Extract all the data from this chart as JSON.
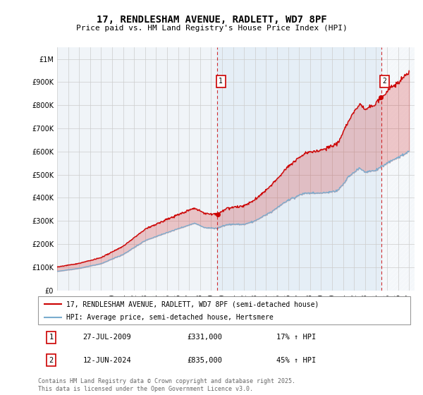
{
  "title": "17, RENDLESHAM AVENUE, RADLETT, WD7 8PF",
  "subtitle": "Price paid vs. HM Land Registry's House Price Index (HPI)",
  "legend_line1": "17, RENDLESHAM AVENUE, RADLETT, WD7 8PF (semi-detached house)",
  "legend_line2": "HPI: Average price, semi-detached house, Hertsmere",
  "footer": "Contains HM Land Registry data © Crown copyright and database right 2025.\nThis data is licensed under the Open Government Licence v3.0.",
  "annotation1_date": "27-JUL-2009",
  "annotation1_price": "£331,000",
  "annotation1_hpi": "17% ↑ HPI",
  "annotation2_date": "12-JUN-2024",
  "annotation2_price": "£835,000",
  "annotation2_hpi": "45% ↑ HPI",
  "red_color": "#cc0000",
  "blue_color": "#7aadcf",
  "ylim_min": 0,
  "ylim_max": 1050000,
  "xmin": 1995,
  "xmax": 2027.5,
  "t1": 2009.583,
  "t2": 2024.458,
  "price1": 331000,
  "price2": 835000,
  "background_color": "#ffffff",
  "grid_color": "#cccccc"
}
